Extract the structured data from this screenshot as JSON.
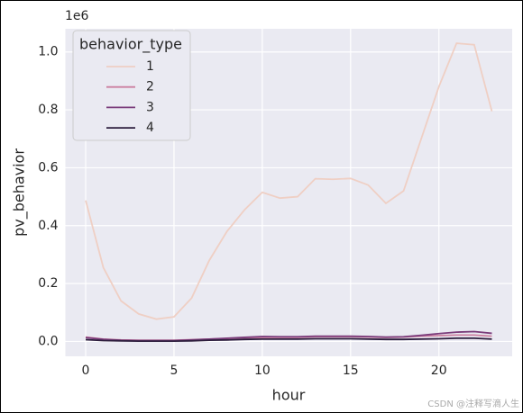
{
  "chart_data": {
    "type": "line",
    "x": [
      0,
      1,
      2,
      3,
      4,
      5,
      6,
      7,
      8,
      9,
      10,
      11,
      12,
      13,
      14,
      15,
      16,
      17,
      18,
      19,
      20,
      21,
      22,
      23
    ],
    "series": [
      {
        "name": "1",
        "color": "#efcfc4",
        "values": [
          0.487,
          0.255,
          0.14,
          0.095,
          0.077,
          0.085,
          0.15,
          0.28,
          0.38,
          0.455,
          0.515,
          0.495,
          0.5,
          0.562,
          0.56,
          0.563,
          0.54,
          0.477,
          0.52,
          0.7,
          0.88,
          1.03,
          1.025,
          0.795
        ]
      },
      {
        "name": "2",
        "color": "#cc7fa0",
        "values": [
          0.015,
          0.008,
          0.005,
          0.004,
          0.004,
          0.004,
          0.006,
          0.008,
          0.01,
          0.012,
          0.014,
          0.014,
          0.014,
          0.016,
          0.016,
          0.016,
          0.015,
          0.014,
          0.015,
          0.018,
          0.02,
          0.022,
          0.022,
          0.018
        ]
      },
      {
        "name": "3",
        "color": "#7a3b7a",
        "values": [
          0.013,
          0.007,
          0.004,
          0.003,
          0.003,
          0.003,
          0.005,
          0.008,
          0.011,
          0.014,
          0.017,
          0.016,
          0.016,
          0.018,
          0.018,
          0.018,
          0.017,
          0.015,
          0.016,
          0.021,
          0.027,
          0.032,
          0.034,
          0.028
        ]
      },
      {
        "name": "4",
        "color": "#2d1e3e",
        "values": [
          0.006,
          0.003,
          0.002,
          0.001,
          0.001,
          0.001,
          0.002,
          0.004,
          0.005,
          0.007,
          0.008,
          0.008,
          0.008,
          0.009,
          0.009,
          0.009,
          0.008,
          0.007,
          0.007,
          0.008,
          0.009,
          0.011,
          0.011,
          0.008
        ]
      }
    ],
    "xlabel": "hour",
    "ylabel": "pv_behavior",
    "y_offset_label": "1e6",
    "legend_title": "behavior_type",
    "legend_position": "upper left",
    "xlim": [
      -1.15,
      24.15
    ],
    "xticks": [
      0,
      5,
      10,
      15,
      20
    ],
    "ylim": [
      -0.0515,
      1.08
    ],
    "yticks": [
      {
        "value": 0,
        "label": "0.0"
      },
      0.2,
      0.4,
      0.6,
      0.8,
      {
        "value": 1,
        "label": "1.0"
      }
    ],
    "grid": true,
    "watermark": "CSDN @注释写滴人生"
  }
}
